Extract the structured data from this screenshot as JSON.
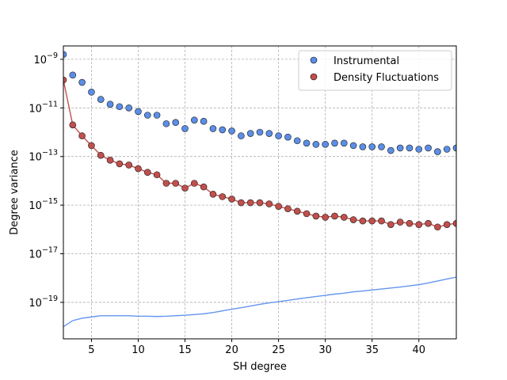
{
  "chart_data": {
    "type": "scatter",
    "xlabel": "SH degree",
    "ylabel": "Degree variance",
    "xlim": [
      2,
      44
    ],
    "ylim_log10": [
      -20.5,
      -8.45
    ],
    "yscale": "log",
    "grid": true,
    "grid_style": "dashed",
    "legend_position": "top-right",
    "x_ticks": [
      5,
      10,
      15,
      20,
      25,
      30,
      35,
      40
    ],
    "x_tick_labels": [
      "5",
      "10",
      "15",
      "20",
      "25",
      "30",
      "35",
      "40"
    ],
    "y_ticks_log10": [
      -9,
      -11,
      -13,
      -15,
      -17,
      -19
    ],
    "y_tick_labels": [
      {
        "base": "10",
        "exp": "−9"
      },
      {
        "base": "10",
        "exp": "−11"
      },
      {
        "base": "10",
        "exp": "−13"
      },
      {
        "base": "10",
        "exp": "−15"
      },
      {
        "base": "10",
        "exp": "−17"
      },
      {
        "base": "10",
        "exp": "−19"
      }
    ],
    "x": [
      2,
      3,
      4,
      5,
      6,
      7,
      8,
      9,
      10,
      11,
      12,
      13,
      14,
      15,
      16,
      17,
      18,
      19,
      20,
      21,
      22,
      23,
      24,
      25,
      26,
      27,
      28,
      29,
      30,
      31,
      32,
      33,
      34,
      35,
      36,
      37,
      38,
      39,
      40,
      41,
      42,
      43,
      44
    ],
    "series": [
      {
        "name": "Instrumental",
        "kind": "scatter",
        "color": "#5b8ee6",
        "log10_values": [
          -8.8,
          -9.65,
          -9.95,
          -10.35,
          -10.65,
          -10.85,
          -10.95,
          -11.0,
          -11.15,
          -11.3,
          -11.3,
          -11.65,
          -11.6,
          -11.85,
          -11.5,
          -11.55,
          -11.85,
          -11.9,
          -11.95,
          -12.15,
          -12.05,
          -12.0,
          -12.05,
          -12.15,
          -12.2,
          -12.35,
          -12.45,
          -12.5,
          -12.5,
          -12.45,
          -12.45,
          -12.55,
          -12.6,
          -12.6,
          -12.6,
          -12.75,
          -12.65,
          -12.65,
          -12.7,
          -12.65,
          -12.8,
          -12.7,
          -12.65
        ]
      },
      {
        "name": "Density Fluctuations",
        "kind": "scatter+line",
        "color": "#c0504d",
        "log10_values": [
          -9.85,
          -11.7,
          -12.15,
          -12.55,
          -12.95,
          -13.15,
          -13.3,
          -13.35,
          -13.5,
          -13.65,
          -13.75,
          -14.1,
          -14.1,
          -14.3,
          -14.1,
          -14.25,
          -14.55,
          -14.65,
          -14.75,
          -14.9,
          -14.9,
          -14.9,
          -14.95,
          -15.05,
          -15.15,
          -15.25,
          -15.35,
          -15.45,
          -15.5,
          -15.45,
          -15.5,
          -15.6,
          -15.65,
          -15.65,
          -15.65,
          -15.8,
          -15.7,
          -15.75,
          -15.8,
          -15.75,
          -15.9,
          -15.8,
          -15.75
        ]
      },
      {
        "name": "",
        "kind": "line",
        "color": "#6495ed",
        "log10_values": [
          -20.0,
          -19.75,
          -19.65,
          -19.6,
          -19.55,
          -19.55,
          -19.55,
          -19.55,
          -19.57,
          -19.57,
          -19.58,
          -19.57,
          -19.55,
          -19.53,
          -19.5,
          -19.47,
          -19.42,
          -19.35,
          -19.28,
          -19.22,
          -19.15,
          -19.08,
          -19.02,
          -18.97,
          -18.92,
          -18.86,
          -18.81,
          -18.76,
          -18.71,
          -18.66,
          -18.62,
          -18.57,
          -18.53,
          -18.49,
          -18.45,
          -18.41,
          -18.37,
          -18.32,
          -18.27,
          -18.2,
          -18.12,
          -18.04,
          -17.96
        ]
      }
    ]
  }
}
